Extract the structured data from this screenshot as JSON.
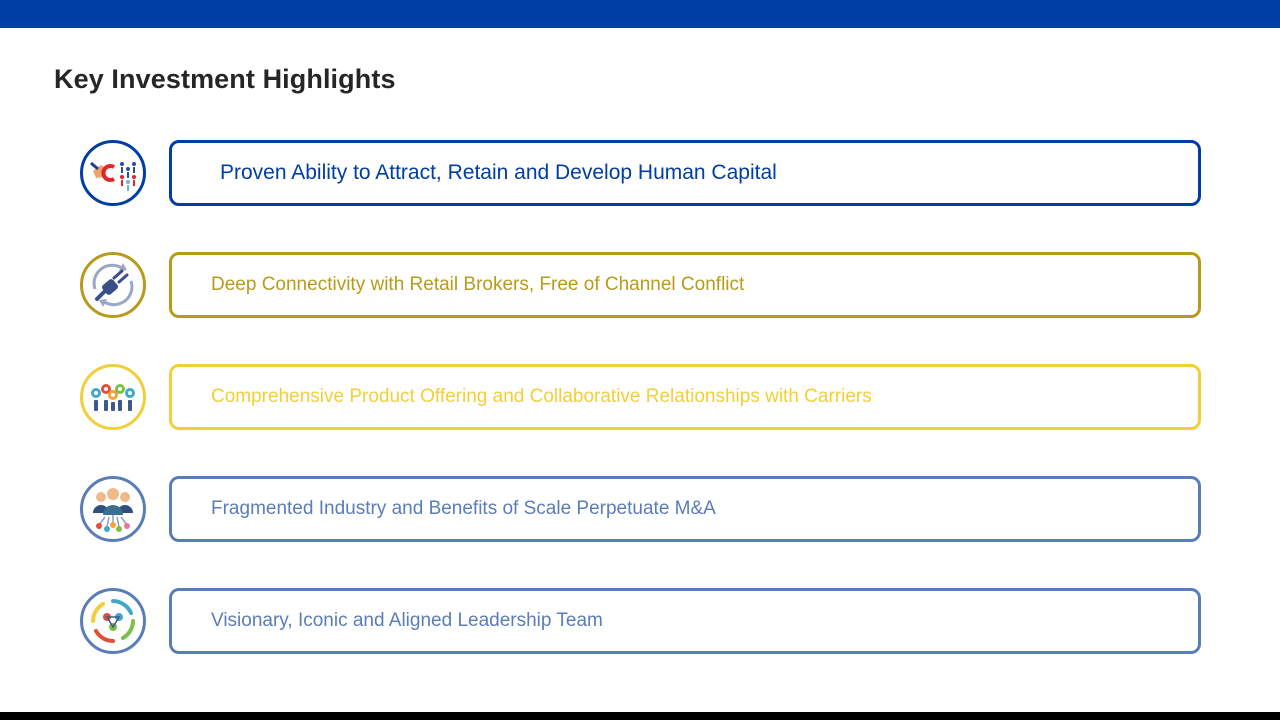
{
  "slide": {
    "title": "Key Investment Highlights",
    "colors": {
      "top_bar": "#003da5",
      "bottom_bar": "#000000",
      "title": "#262626"
    }
  },
  "highlights": [
    {
      "text": "Proven Ability to Attract, Retain and Develop Human Capital",
      "color": "#003da5",
      "icon": "talent-magnet-icon"
    },
    {
      "text": "Deep Connectivity with Retail Brokers, Free of Channel Conflict",
      "color": "#b89a1c",
      "icon": "plug-connection-icon"
    },
    {
      "text": "Comprehensive Product Offering and Collaborative Relationships with Carriers",
      "color": "#f2cf3a",
      "icon": "gears-collaboration-icon"
    },
    {
      "text": "Fragmented Industry and Benefits of Scale Perpetuate M&A",
      "color": "#5a7db8",
      "icon": "team-network-icon"
    },
    {
      "text": "Visionary, Iconic and Aligned Leadership Team",
      "color": "#5a7db8",
      "icon": "aligned-circle-icon"
    }
  ]
}
